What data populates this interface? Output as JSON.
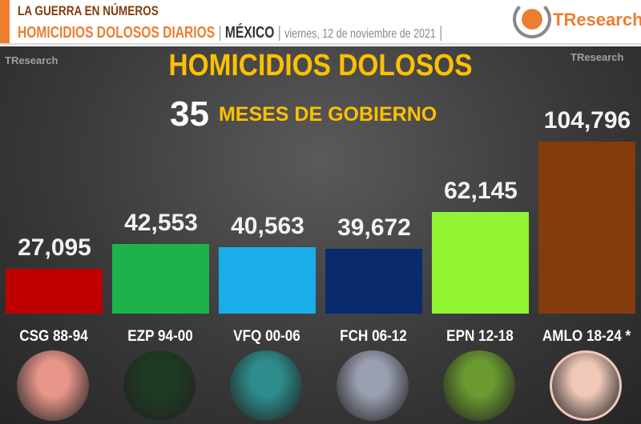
{
  "header": {
    "line1": "LA GUERRA EN NÚMEROS",
    "topic": "HOMICIDIOS DOLOSOS DIARIOS",
    "region": "MÉXICO",
    "date": "viernes, 12 de noviembre de 2021",
    "logo": "TResearch"
  },
  "chart_data": {
    "type": "bar",
    "title": "HOMICIDIOS DOLOSOS",
    "subtitle_number": "35",
    "subtitle_text": "MESES DE GOBIERNO",
    "categories": [
      "CSG 88-94",
      "EZP 94-00",
      "VFQ 00-06",
      "FCH 06-12",
      "EPN 12-18",
      "AMLO 18-24 *"
    ],
    "values": [
      27095,
      42553,
      40563,
      39672,
      62145,
      104796
    ],
    "labels": [
      "27,095",
      "42,553",
      "40,563",
      "39,672",
      "62,145",
      "104,796"
    ],
    "colors": [
      "#c00000",
      "#1db34a",
      "#1aaee8",
      "#0a2a6e",
      "#92f534",
      "#843c0c"
    ],
    "photo_tints": [
      "#e8968a",
      "#1e3b22",
      "#2e8c8c",
      "#9aa0b0",
      "#6a9a30",
      "#f0c8b8"
    ],
    "ylim": [
      0,
      110000
    ],
    "grid": false,
    "legend": "none"
  }
}
